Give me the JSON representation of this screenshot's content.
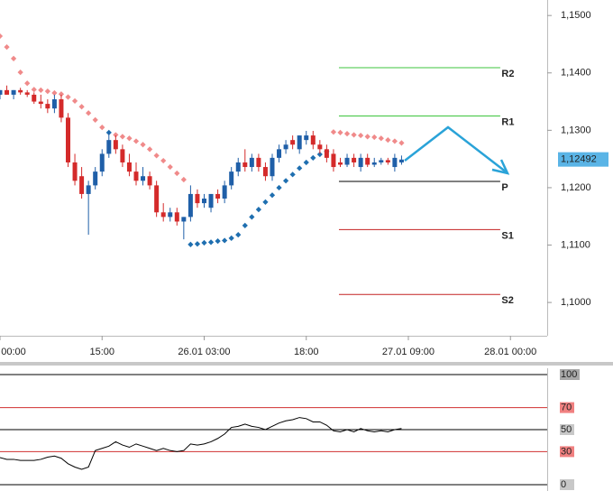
{
  "chart_data": [
    {
      "type": "candlestick",
      "x": [
        0,
        1,
        2,
        3,
        4,
        5,
        6,
        7,
        8,
        9,
        10,
        11,
        12,
        13,
        14,
        15,
        16,
        17,
        18,
        19,
        20,
        21,
        22,
        23,
        24,
        25,
        26,
        27,
        28,
        29,
        30,
        31,
        32,
        33,
        34,
        35,
        36,
        37,
        38,
        39,
        40,
        41,
        42,
        43,
        44,
        45,
        46,
        47,
        48,
        49,
        50,
        51,
        52,
        53,
        54,
        55,
        56,
        57,
        58,
        59
      ],
      "open": [
        1.1362,
        1.137,
        1.1362,
        1.137,
        1.1366,
        1.1362,
        1.135,
        1.1346,
        1.1338,
        1.1354,
        1.1322,
        1.1244,
        1.122,
        1.1189,
        1.1204,
        1.1228,
        1.1259,
        1.1283,
        1.1267,
        1.1244,
        1.1228,
        1.1212,
        1.122,
        1.1204,
        1.1157,
        1.1149,
        1.1157,
        1.1141,
        1.1149,
        1.1189,
        1.1173,
        1.1165,
        1.1189,
        1.1181,
        1.1204,
        1.1228,
        1.1244,
        1.1236,
        1.1252,
        1.1236,
        1.122,
        1.1252,
        1.1267,
        1.1283,
        1.1267,
        1.1283,
        1.1291,
        1.1275,
        1.1267,
        1.1259,
        1.1244,
        1.124,
        1.1252,
        1.1236,
        1.1252,
        1.124,
        1.1244,
        1.1248,
        1.1236,
        1.1244
      ],
      "high": [
        1.137,
        1.1378,
        1.137,
        1.1374,
        1.137,
        1.1366,
        1.1362,
        1.1354,
        1.1362,
        1.1362,
        1.133,
        1.1259,
        1.1236,
        1.1212,
        1.1236,
        1.1267,
        1.1299,
        1.1291,
        1.1275,
        1.1259,
        1.1244,
        1.1236,
        1.1228,
        1.1212,
        1.1173,
        1.1165,
        1.1165,
        1.1149,
        1.1204,
        1.1197,
        1.1189,
        1.1189,
        1.1197,
        1.1212,
        1.1236,
        1.1252,
        1.1267,
        1.1259,
        1.1259,
        1.1244,
        1.1259,
        1.1275,
        1.1283,
        1.1291,
        1.1291,
        1.1299,
        1.1299,
        1.1283,
        1.1275,
        1.1267,
        1.1252,
        1.1259,
        1.1259,
        1.1259,
        1.1259,
        1.1252,
        1.1252,
        1.1252,
        1.1259,
        1.1256
      ],
      "low": [
        1.1354,
        1.1362,
        1.1354,
        1.1362,
        1.1358,
        1.1346,
        1.1338,
        1.133,
        1.133,
        1.1314,
        1.1236,
        1.1204,
        1.1181,
        1.1118,
        1.1197,
        1.122,
        1.1252,
        1.1259,
        1.1236,
        1.122,
        1.1204,
        1.1204,
        1.1197,
        1.1149,
        1.1141,
        1.1141,
        1.1134,
        1.111,
        1.1141,
        1.1165,
        1.1165,
        1.1157,
        1.1173,
        1.1173,
        1.1197,
        1.122,
        1.1228,
        1.1228,
        1.1228,
        1.1212,
        1.1212,
        1.1244,
        1.1259,
        1.1267,
        1.1259,
        1.1275,
        1.1267,
        1.1259,
        1.1244,
        1.1228,
        1.1236,
        1.1236,
        1.1236,
        1.1228,
        1.1236,
        1.1236,
        1.124,
        1.124,
        1.1228,
        1.124
      ],
      "close": [
        1.137,
        1.1362,
        1.137,
        1.1366,
        1.1362,
        1.135,
        1.1346,
        1.1338,
        1.1354,
        1.1322,
        1.1244,
        1.1212,
        1.1189,
        1.1204,
        1.1228,
        1.1259,
        1.1283,
        1.1267,
        1.1244,
        1.1228,
        1.1212,
        1.122,
        1.1204,
        1.1157,
        1.1149,
        1.1157,
        1.1141,
        1.1149,
        1.1189,
        1.1173,
        1.1181,
        1.1189,
        1.1181,
        1.1204,
        1.1228,
        1.1244,
        1.1236,
        1.1252,
        1.1236,
        1.122,
        1.1252,
        1.1267,
        1.1275,
        1.1275,
        1.1291,
        1.1291,
        1.1275,
        1.1267,
        1.1252,
        1.1236,
        1.124,
        1.1252,
        1.1244,
        1.1252,
        1.124,
        1.1244,
        1.1248,
        1.1244,
        1.1252,
        1.1249
      ],
      "up_color": "#1f5fa8",
      "down_color": "#d42a2a",
      "sar": {
        "values": [
          1.1464,
          1.1445,
          1.1425,
          1.1401,
          1.1382,
          1.1371,
          1.137,
          1.1368,
          1.1365,
          1.1363,
          1.1358,
          1.1351,
          1.1341,
          1.133,
          1.1318,
          1.1305,
          1.1296,
          1.1292,
          1.1289,
          1.1286,
          1.1281,
          1.1275,
          1.1267,
          1.1256,
          1.1247,
          1.1236,
          1.1225,
          1.1214,
          1.1101,
          1.1102,
          1.1104,
          1.1105,
          1.1107,
          1.1108,
          1.1112,
          1.1118,
          1.1134,
          1.1149,
          1.1162,
          1.1175,
          1.1187,
          1.12,
          1.1212,
          1.1223,
          1.1234,
          1.1244,
          1.1252,
          1.1258,
          1.1263,
          1.1297,
          1.1296,
          1.1294,
          1.1292,
          1.1291,
          1.1289,
          1.1288,
          1.1286,
          1.1283,
          1.1281,
          1.1278
        ],
        "above_color": "#f08a8a",
        "below_color": "#1f6fb0"
      },
      "levels": [
        {
          "name": "R2",
          "value": 1.1409,
          "color": "#3cc43c"
        },
        {
          "name": "R1",
          "value": 1.1325,
          "color": "#3cc43c"
        },
        {
          "name": "P",
          "value": 1.1211,
          "color": "#000000"
        },
        {
          "name": "S1",
          "value": 1.1127,
          "color": "#c42020"
        },
        {
          "name": "S2",
          "value": 1.1014,
          "color": "#c42020"
        }
      ],
      "current_price": {
        "value": 1.12492,
        "label": "1,12492"
      },
      "xlim": [
        0,
        80.4
      ],
      "xticks": [
        {
          "value": 0,
          "label": "00:00"
        },
        {
          "value": 15,
          "label": "15:00"
        },
        {
          "value": 30,
          "label": "26.01 03:00"
        },
        {
          "value": 45,
          "label": "18:00"
        },
        {
          "value": 60,
          "label": "27.01 09:00"
        },
        {
          "value": 75,
          "label": "28.01 00:00"
        }
      ],
      "ylim": [
        1.0942,
        1.1527
      ],
      "yticks": [
        {
          "value": 1.15,
          "label": "1,1500"
        },
        {
          "value": 1.14,
          "label": "1,1400"
        },
        {
          "value": 1.13,
          "label": "1,1300"
        },
        {
          "value": 1.12,
          "label": "1,1200"
        },
        {
          "value": 1.11,
          "label": "1,1100"
        },
        {
          "value": 1.1,
          "label": "1,1000"
        }
      ]
    },
    {
      "type": "line",
      "series": [
        {
          "values": [
            24.6,
            23,
            23,
            22,
            22,
            22,
            23,
            25,
            26,
            24,
            19,
            16,
            14,
            16,
            31,
            33,
            35,
            39,
            36,
            34,
            37,
            35,
            33,
            31,
            33,
            31,
            30,
            31,
            37,
            36,
            37,
            39,
            42,
            46,
            52,
            53,
            55,
            53,
            52,
            50,
            53,
            56,
            58,
            59,
            61,
            60,
            57,
            57,
            54,
            49,
            48,
            50,
            48,
            51,
            49,
            48,
            49,
            48,
            50,
            51
          ],
          "color": "#000000"
        }
      ],
      "ylim": [
        0,
        100
      ],
      "yticks": [
        100,
        70,
        50,
        30,
        0
      ],
      "tick_colors": [
        "#000000",
        "#d03030",
        "#000000",
        "#d03030",
        "#000000"
      ],
      "tick_label_backgrounds": [
        "#a8a8a8",
        "#f08080",
        "#c8c8c8",
        "#f08080",
        "#c8c8c8"
      ]
    }
  ]
}
